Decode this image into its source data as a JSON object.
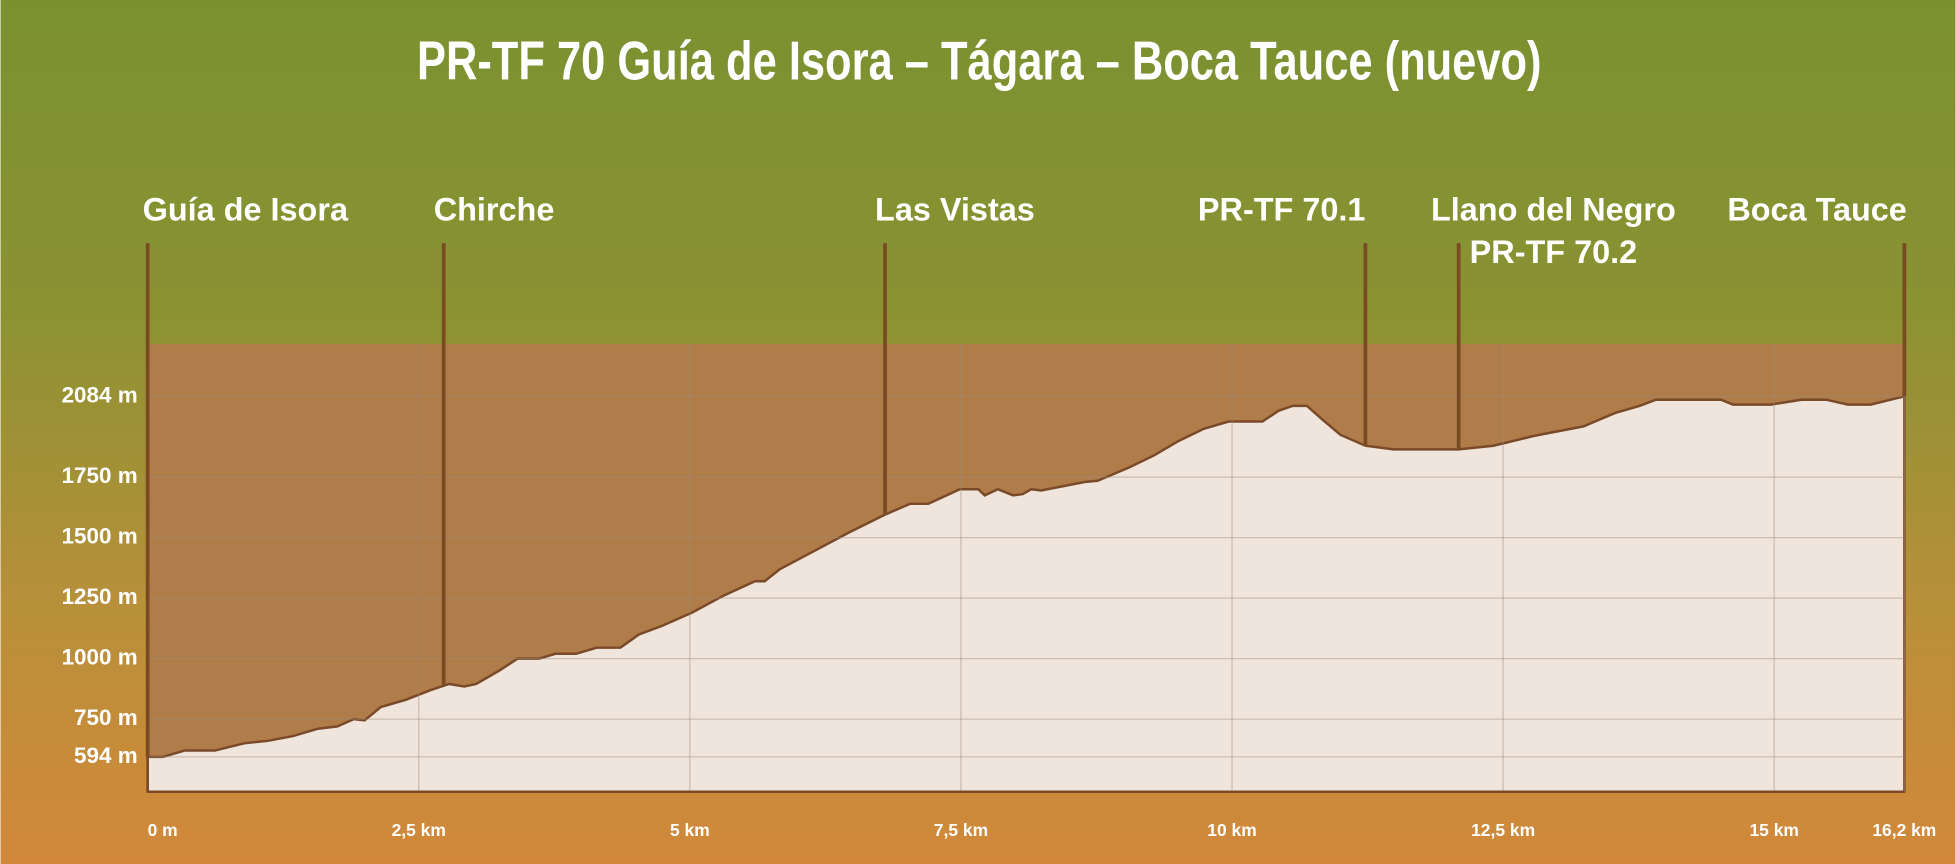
{
  "chart_data": {
    "type": "area",
    "title": "PR-TF 70 Guía de Isora – Tágara – Boca Tauce (nuevo)",
    "x": [
      0,
      0.14,
      0.34,
      0.62,
      0.89,
      1.11,
      1.34,
      1.57,
      1.75,
      1.9,
      2.0,
      2.15,
      2.38,
      2.61,
      2.78,
      2.92,
      3.03,
      3.24,
      3.41,
      3.61,
      3.76,
      3.95,
      4.14,
      4.36,
      4.53,
      4.74,
      5.02,
      5.31,
      5.6,
      5.69,
      5.83,
      6.17,
      6.46,
      6.8,
      7.03,
      7.2,
      7.49,
      7.66,
      7.72,
      7.84,
      7.98,
      8.07,
      8.15,
      8.24,
      8.41,
      8.64,
      8.76,
      9.05,
      9.28,
      9.51,
      9.74,
      9.97,
      10.28,
      10.43,
      10.56,
      10.69,
      10.83,
      11.0,
      11.23,
      11.49,
      11.75,
      12.09,
      12.41,
      12.78,
      13.24,
      13.53,
      13.76,
      13.91,
      14.51,
      14.62,
      14.97,
      15.25,
      15.48,
      15.68,
      15.89,
      16.2
    ],
    "values": [
      594,
      594,
      620,
      620,
      650,
      660,
      680,
      710,
      720,
      750,
      745,
      800,
      830,
      870,
      895,
      885,
      895,
      950,
      1000,
      1000,
      1020,
      1020,
      1045,
      1045,
      1100,
      1135,
      1190,
      1260,
      1320,
      1320,
      1370,
      1450,
      1520,
      1595,
      1640,
      1640,
      1700,
      1700,
      1675,
      1700,
      1675,
      1680,
      1700,
      1695,
      1710,
      1730,
      1735,
      1790,
      1840,
      1900,
      1950,
      1980,
      1980,
      2025,
      2045,
      2045,
      1990,
      1925,
      1880,
      1865,
      1865,
      1865,
      1880,
      1920,
      1960,
      2015,
      2045,
      2070,
      2070,
      2050,
      2050,
      2070,
      2070,
      2050,
      2050,
      2084
    ],
    "color": "#efe5dc",
    "xlim": [
      0,
      16.2
    ],
    "ylim": [
      450,
      2300
    ],
    "xticks": [
      {
        "value": 0,
        "label": "0 m"
      },
      {
        "value": 2.5,
        "label": "2,5 km"
      },
      {
        "value": 5,
        "label": "5 km"
      },
      {
        "value": 7.5,
        "label": "7,5 km"
      },
      {
        "value": 10,
        "label": "10 km"
      },
      {
        "value": 12.5,
        "label": "12,5 km"
      },
      {
        "value": 15,
        "label": "15 km"
      },
      {
        "value": 16.2,
        "label": "16,2 km"
      }
    ],
    "yticks": [
      {
        "value": 594,
        "label": "594 m"
      },
      {
        "value": 750,
        "label": "750 m"
      },
      {
        "value": 1000,
        "label": "1000 m"
      },
      {
        "value": 1250,
        "label": "1250 m"
      },
      {
        "value": 1500,
        "label": "1500 m"
      },
      {
        "value": 1750,
        "label": "1750 m"
      },
      {
        "value": 2084,
        "label": "2084 m"
      }
    ],
    "grid": true,
    "waypoints": [
      {
        "lines": [
          "Guía de Isora"
        ],
        "x": 0
      },
      {
        "lines": [
          "Chirche"
        ],
        "x": 2.73
      },
      {
        "lines": [
          "Las Vistas"
        ],
        "x": 6.8
      },
      {
        "lines": [
          "PR-TF 70.1"
        ],
        "x": 11.23
      },
      {
        "lines": [
          "Llano del Negro",
          "PR-TF 70.2"
        ],
        "x": 12.09
      },
      {
        "lines": [
          "Boca Tauce"
        ],
        "x": 16.2
      }
    ]
  }
}
